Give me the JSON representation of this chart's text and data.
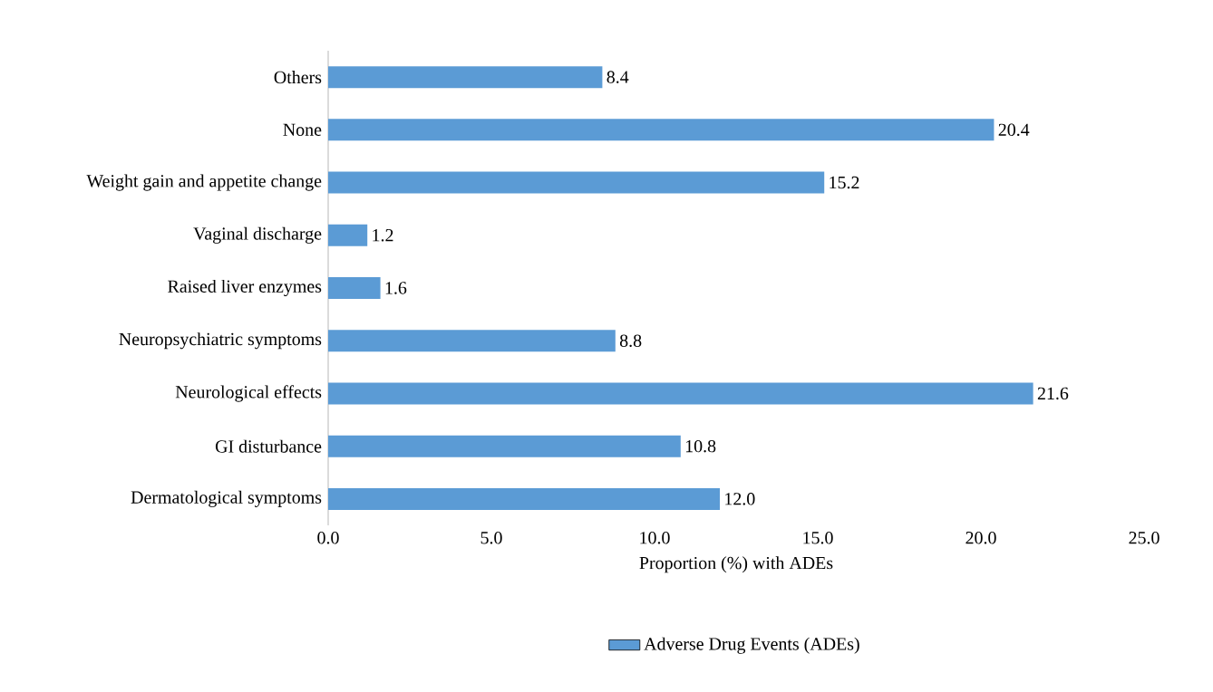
{
  "chart_data": {
    "type": "bar",
    "orientation": "horizontal",
    "xlabel": "Proportion (%) with ADEs",
    "categories": [
      "Others",
      "None",
      "Weight gain and appetite change",
      "Vaginal discharge",
      "Raised liver enzymes",
      "Neuropsychiatric symptoms",
      "Neurological effects",
      "GI disturbance",
      "Dermatological symptoms"
    ],
    "series": [
      {
        "name": "Adverse Drug Events (ADEs)",
        "color": "#5b9bd5",
        "values": [
          8.4,
          20.4,
          15.2,
          1.2,
          1.6,
          8.8,
          21.6,
          10.8,
          12.0
        ],
        "value_labels": [
          "8.4",
          "20.4",
          "15.2",
          "1.2",
          "1.6",
          "8.8",
          "21.6",
          "10.8",
          "12.0"
        ]
      }
    ],
    "xlim": [
      0,
      25
    ],
    "xticks": [
      {
        "value": 0,
        "label": "0.0"
      },
      {
        "value": 5,
        "label": "5.0"
      },
      {
        "value": 10,
        "label": "10.0"
      },
      {
        "value": 15,
        "label": "15.0"
      },
      {
        "value": 20,
        "label": "20.0"
      },
      {
        "value": 25,
        "label": "25.0"
      }
    ],
    "legend": "bottom"
  }
}
